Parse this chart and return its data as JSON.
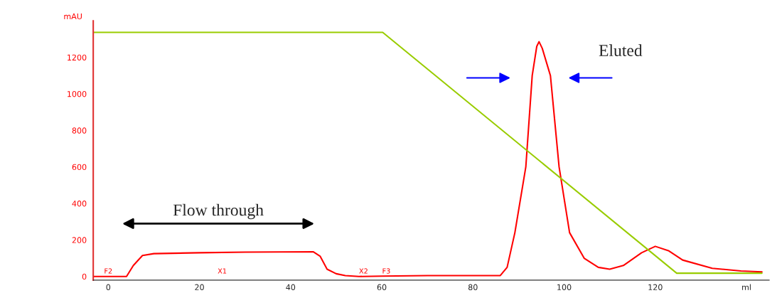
{
  "chart_data": {
    "type": "line",
    "ylabel": "mAU",
    "xlim": [
      -3.3,
      145
    ],
    "xticks": [
      0,
      20,
      40,
      60,
      80,
      100,
      120,
      {
        "value": 140,
        "label": "ml"
      }
    ],
    "ylim": [
      -20,
      1400
    ],
    "yticks": [
      0,
      200,
      400,
      600,
      800,
      1000,
      1200
    ],
    "grid": false,
    "marker": "none",
    "line_style": "solid",
    "series": [
      {
        "color": "#ff0000",
        "x": [
          -3.3,
          4,
          5.5,
          7.5,
          10,
          20,
          30,
          45,
          46.5,
          48,
          50,
          52,
          55,
          60,
          70,
          80,
          86,
          87.5,
          89.2,
          91.6,
          93,
          94,
          94.5,
          95.2,
          97,
          98.9,
          101.2,
          104.4,
          107.5,
          110,
          113,
          117,
          120,
          123,
          126,
          132.5,
          138.8,
          143.4
        ],
        "values": [
          0,
          0,
          60,
          115,
          125,
          130,
          133,
          135,
          110,
          40,
          15,
          5,
          0,
          2,
          5,
          5,
          5,
          50,
          240,
          600,
          1100,
          1260,
          1286,
          1250,
          1100,
          600,
          240,
          100,
          50,
          40,
          60,
          130,
          165,
          140,
          90,
          45,
          30,
          25
        ]
      },
      {
        "color": "#99cc00",
        "x": [
          -3.3,
          60.2,
          124.7,
          143.4
        ],
        "values": [
          1337,
          1337,
          18,
          18
        ]
      }
    ],
    "annotations": [
      "Flow through",
      "Eluted",
      "F2",
      "X1",
      "X2",
      "F3"
    ]
  }
}
